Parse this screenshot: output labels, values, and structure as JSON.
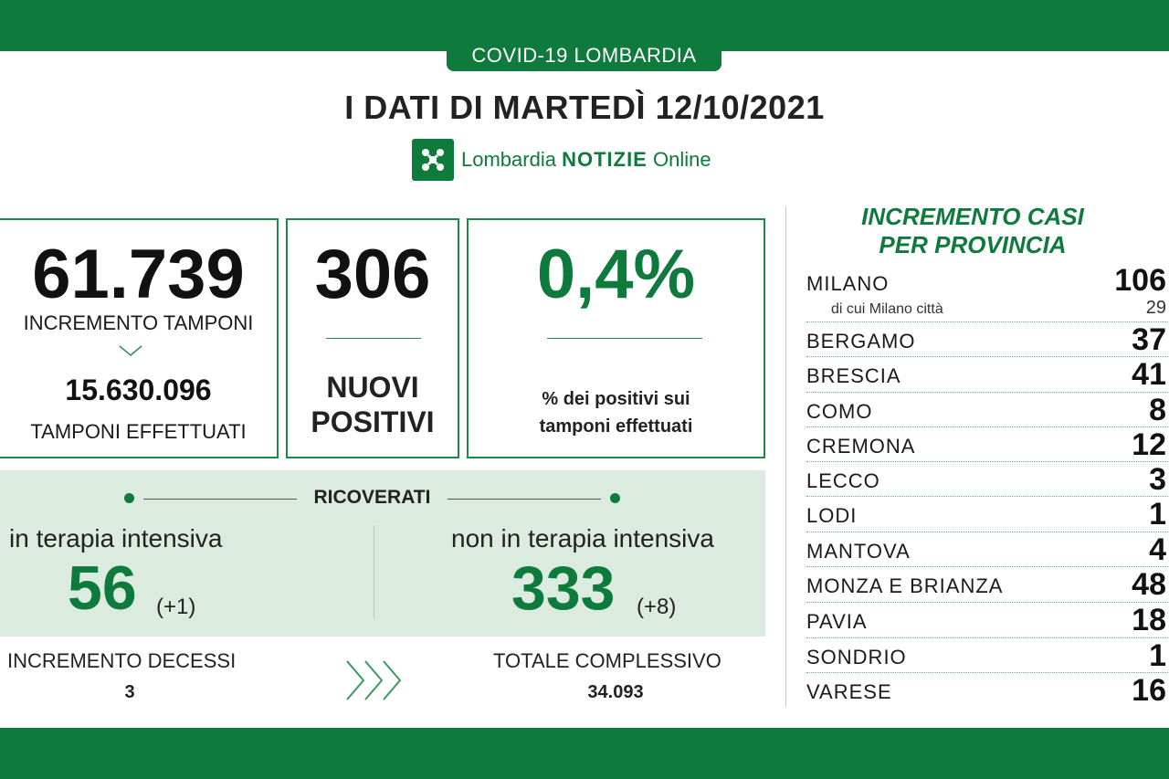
{
  "header": {
    "badge": "COVID-19 LOMBARDIA",
    "title": "I DATI DI MARTEDÌ 12/10/2021",
    "logo_text_1": "Lombardia",
    "logo_text_2": "NOTIZIE",
    "logo_text_3": "Online"
  },
  "tamponi": {
    "value": "61.739",
    "label": "INCREMENTO TAMPONI",
    "total": "15.630.096",
    "total_label": "TAMPONI EFFETTUATI"
  },
  "positivi": {
    "value": "306",
    "label_1": "NUOVI",
    "label_2": "POSITIVI"
  },
  "percentuale": {
    "value": "0,4%",
    "label_1": "% dei positivi sui",
    "label_2": "tamponi effettuati"
  },
  "ricoverati": {
    "title": "RICOVERATI",
    "ti_label": "in terapia intensiva",
    "ti_value": "56",
    "ti_delta": "(+1)",
    "nti_label": "non in terapia intensiva",
    "nti_value": "333",
    "nti_delta": "(+8)"
  },
  "decessi": {
    "label": "INCREMENTO DECESSI",
    "value": "3",
    "total_label": "TOTALE COMPLESSIVO",
    "total": "34.093"
  },
  "province": {
    "title_1": "INCREMENTO CASI",
    "title_2": "PER PROVINCIA",
    "milano_sub_label": "di cui Milano città",
    "milano_sub_value": "29",
    "items": [
      {
        "name": "MILANO",
        "value": "106"
      },
      {
        "name": "BERGAMO",
        "value": "37"
      },
      {
        "name": "BRESCIA",
        "value": "41"
      },
      {
        "name": "COMO",
        "value": "8"
      },
      {
        "name": "CREMONA",
        "value": "12"
      },
      {
        "name": "LECCO",
        "value": "3"
      },
      {
        "name": "LODI",
        "value": "1"
      },
      {
        "name": "MANTOVA",
        "value": "4"
      },
      {
        "name": "MONZA E BRIANZA",
        "value": "48"
      },
      {
        "name": "PAVIA",
        "value": "18"
      },
      {
        "name": "SONDRIO",
        "value": "1"
      },
      {
        "name": "VARESE",
        "value": "16"
      }
    ]
  },
  "colors": {
    "brand_green": "#0e7a3c",
    "panel_bg": "#dcebe0"
  }
}
